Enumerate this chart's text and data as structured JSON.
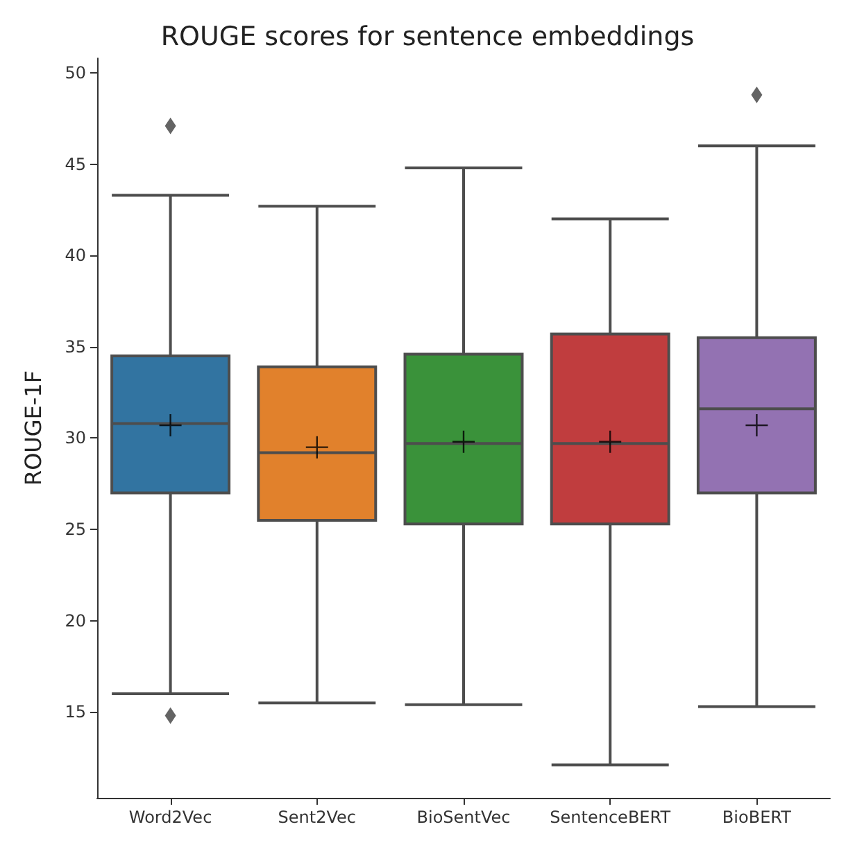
{
  "chart_data": {
    "type": "box",
    "title": "ROUGE scores for sentence embeddings",
    "ylabel": "ROUGE-1F",
    "categories": [
      "Word2Vec",
      "Sent2Vec",
      "BioSentVec",
      "SentenceBERT",
      "BioBERT"
    ],
    "colors": [
      "#3274a1",
      "#e1812c",
      "#3a923a",
      "#c03d3e",
      "#9372b2"
    ],
    "boxes": [
      {
        "low": 16.0,
        "q1": 27.0,
        "median": 30.8,
        "q3": 34.5,
        "high": 43.3,
        "mean": 30.7,
        "outliers": [
          47.1,
          14.8
        ]
      },
      {
        "low": 15.5,
        "q1": 25.5,
        "median": 29.2,
        "q3": 33.9,
        "high": 42.7,
        "mean": 29.5
      },
      {
        "low": 15.4,
        "q1": 25.3,
        "median": 29.7,
        "q3": 34.6,
        "high": 44.8,
        "mean": 29.8
      },
      {
        "low": 12.1,
        "q1": 25.3,
        "median": 29.7,
        "q3": 35.7,
        "high": 42.0,
        "mean": 29.8
      },
      {
        "low": 15.3,
        "q1": 27.0,
        "median": 31.6,
        "q3": 35.5,
        "high": 46.0,
        "mean": 30.7,
        "outliers": [
          48.8
        ]
      }
    ],
    "ylim": [
      10.3,
      50.8
    ],
    "yticks": [
      15,
      20,
      25,
      30,
      35,
      40,
      45,
      50
    ]
  }
}
